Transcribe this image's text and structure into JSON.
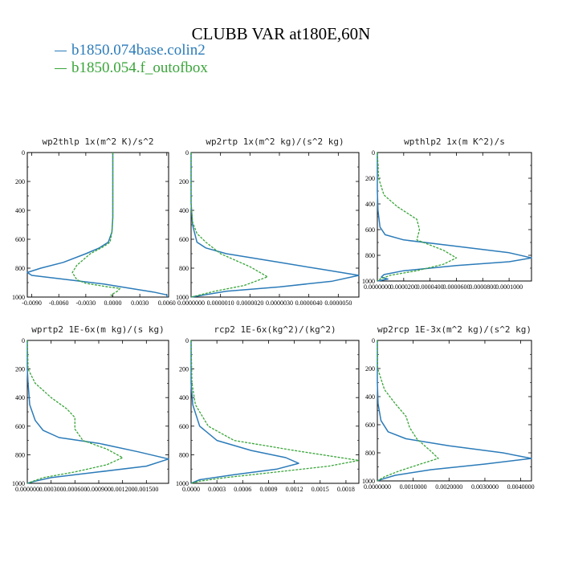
{
  "header": {
    "title": "CLUBB VAR at180E,60N"
  },
  "legend": [
    {
      "label": "b1850.074base.colin2",
      "color": "#2b7bb9"
    },
    {
      "label": "b1850.054.f_outofbox",
      "color": "#3aa53a"
    }
  ],
  "chart_data": [
    {
      "type": "line",
      "title": "wp2thlp   1x(m^2 K)/s^2",
      "xlim": [
        -0.0095,
        0.0062
      ],
      "ylim": [
        0,
        1000
      ],
      "y_inverted": true,
      "x_ticks": [
        -0.009,
        -0.006,
        -0.003,
        0.0,
        0.003,
        0.006
      ],
      "x_tick_labels": [
        "-0.0090",
        "-0.0060",
        "-0.0030",
        "0.0000",
        "0.0030",
        "0.0060"
      ],
      "y_ticks": [
        0,
        200,
        400,
        600,
        800,
        1000
      ],
      "y_tick_labels": [
        "0",
        "200",
        "400",
        "600",
        "800",
        "1000"
      ],
      "series": [
        {
          "values": [
            [
              0,
              0
            ],
            [
              0,
              300
            ],
            [
              0,
              450
            ],
            [
              -0.0001,
              550
            ],
            [
              -0.0005,
              620
            ],
            [
              -0.0015,
              660
            ],
            [
              -0.003,
              700
            ],
            [
              -0.0055,
              760
            ],
            [
              -0.008,
              800
            ],
            [
              -0.0095,
              830
            ],
            [
              -0.009,
              850
            ],
            [
              -0.005,
              880
            ],
            [
              -0.001,
              910
            ],
            [
              0.002,
              940
            ],
            [
              0.0045,
              965
            ],
            [
              0.006,
              985
            ],
            [
              0.006,
              1000
            ]
          ]
        },
        {
          "values": [
            [
              0,
              0
            ],
            [
              0,
              300
            ],
            [
              0,
              450
            ],
            [
              -0.0001,
              550
            ],
            [
              -0.0003,
              620
            ],
            [
              -0.001,
              650
            ],
            [
              -0.0025,
              700
            ],
            [
              -0.004,
              780
            ],
            [
              -0.0045,
              830
            ],
            [
              -0.004,
              880
            ],
            [
              -0.003,
              905
            ],
            [
              -0.0005,
              930
            ],
            [
              0.0008,
              940
            ],
            [
              0.0005,
              960
            ],
            [
              -0.0002,
              985
            ],
            [
              0,
              1000
            ]
          ]
        }
      ]
    },
    {
      "type": "line",
      "title": "wp2rtp   1x(m^2 kg)/(s^2 kg)",
      "xlim": [
        0,
        5.7e-06
      ],
      "ylim": [
        0,
        1000
      ],
      "y_inverted": true,
      "x_ticks": [
        0,
        1e-06,
        2e-06,
        3e-06,
        4e-06,
        5e-06
      ],
      "x_tick_labels": [
        "0.0000000",
        "0.0000010",
        "0.0000020",
        "0.0000030",
        "0.0000040",
        "0.0000050"
      ],
      "y_ticks": [
        0,
        200,
        400,
        600,
        800,
        1000
      ],
      "y_tick_labels": [
        "0",
        "200",
        "400",
        "600",
        "800",
        "1000"
      ],
      "series": [
        {
          "values": [
            [
              0,
              0
            ],
            [
              0,
              350
            ],
            [
              5e-08,
              500
            ],
            [
              2e-07,
              620
            ],
            [
              5e-07,
              660
            ],
            [
              1.2e-06,
              700
            ],
            [
              3e-06,
              760
            ],
            [
              4.5e-06,
              810
            ],
            [
              5.7e-06,
              850
            ],
            [
              4.8e-06,
              890
            ],
            [
              3e-06,
              930
            ],
            [
              1.2e-06,
              960
            ],
            [
              3e-07,
              990
            ],
            [
              0,
              1000
            ]
          ]
        },
        {
          "values": [
            [
              0,
              0
            ],
            [
              0,
              350
            ],
            [
              5e-08,
              480
            ],
            [
              2e-07,
              560
            ],
            [
              5e-07,
              620
            ],
            [
              1e-06,
              700
            ],
            [
              2e-06,
              790
            ],
            [
              2.6e-06,
              860
            ],
            [
              1.8e-06,
              920
            ],
            [
              8e-07,
              960
            ],
            [
              2e-07,
              990
            ],
            [
              0,
              1000
            ]
          ]
        }
      ]
    },
    {
      "type": "line",
      "title": "wpthlp2   1x(m K^2)/s",
      "xlim": [
        0,
        0.000117
      ],
      "ylim": [
        0,
        1000
      ],
      "y_inverted": true,
      "x_ticks": [
        0,
        2e-05,
        4e-05,
        6e-05,
        8e-05,
        0.0001
      ],
      "x_tick_labels": [
        "0.0000000",
        "0.0000200",
        "0.0000400",
        "0.0000600",
        "0.0000800",
        "0.0001000"
      ],
      "y_ticks": [
        0,
        200,
        400,
        600,
        800,
        1000
      ],
      "y_tick_labels": [
        "0",
        "200",
        "400",
        "600",
        "800",
        "1000"
      ],
      "series": [
        {
          "values": [
            [
              0,
              0
            ],
            [
              0,
              300
            ],
            [
              5e-07,
              450
            ],
            [
              2e-06,
              580
            ],
            [
              6e-06,
              640
            ],
            [
              2e-05,
              680
            ],
            [
              6e-05,
              730
            ],
            [
              0.0001,
              780
            ],
            [
              0.000117,
              820
            ],
            [
              0.0001,
              850
            ],
            [
              6e-05,
              880
            ],
            [
              2e-05,
              920
            ],
            [
              5e-06,
              950
            ],
            [
              3e-06,
              970
            ],
            [
              8e-06,
              985
            ],
            [
              0,
              1000
            ]
          ]
        },
        {
          "values": [
            [
              0,
              0
            ],
            [
              1e-06,
              200
            ],
            [
              5e-06,
              330
            ],
            [
              1.5e-05,
              420
            ],
            [
              3e-05,
              520
            ],
            [
              3.2e-05,
              600
            ],
            [
              3e-05,
              680
            ],
            [
              5e-05,
              760
            ],
            [
              6e-05,
              820
            ],
            [
              5e-05,
              870
            ],
            [
              3e-05,
              920
            ],
            [
              1e-05,
              955
            ],
            [
              2e-06,
              985
            ],
            [
              0,
              1000
            ]
          ]
        }
      ]
    },
    {
      "type": "line",
      "title": "wprtp2   1E-6x(m kg)/(s kg)",
      "xlim": [
        0,
        0.00178
      ],
      "ylim": [
        0,
        1000
      ],
      "y_inverted": true,
      "x_ticks": [
        0,
        0.0003,
        0.0006,
        0.0009,
        0.0012,
        0.0015
      ],
      "x_tick_labels": [
        "0.000000",
        "0.000300",
        "0.000600",
        "0.000900",
        "0.001200",
        "0.001500"
      ],
      "y_ticks": [
        0,
        200,
        400,
        600,
        800,
        1000
      ],
      "y_tick_labels": [
        "0",
        "200",
        "400",
        "600",
        "800",
        "1000"
      ],
      "series": [
        {
          "values": [
            [
              0,
              0
            ],
            [
              0,
              200
            ],
            [
              1e-05,
              300
            ],
            [
              3e-05,
              450
            ],
            [
              0.0001,
              560
            ],
            [
              0.0002,
              630
            ],
            [
              0.0004,
              680
            ],
            [
              0.0009,
              720
            ],
            [
              0.0014,
              780
            ],
            [
              0.00178,
              830
            ],
            [
              0.0015,
              880
            ],
            [
              0.0009,
              920
            ],
            [
              0.0003,
              960
            ],
            [
              0.0001,
              985
            ],
            [
              0,
              1000
            ]
          ]
        },
        {
          "values": [
            [
              0,
              0
            ],
            [
              1e-05,
              200
            ],
            [
              0.0001,
              300
            ],
            [
              0.0003,
              400
            ],
            [
              0.0005,
              480
            ],
            [
              0.0006,
              540
            ],
            [
              0.0006,
              620
            ],
            [
              0.0007,
              700
            ],
            [
              0.001,
              760
            ],
            [
              0.0012,
              820
            ],
            [
              0.001,
              870
            ],
            [
              0.0006,
              920
            ],
            [
              0.0002,
              960
            ],
            [
              5e-05,
              990
            ],
            [
              0,
              1000
            ]
          ]
        }
      ]
    },
    {
      "type": "line",
      "title": "rcp2   1E-6x(kg^2)/(kg^2)",
      "xlim": [
        0,
        0.00195
      ],
      "ylim": [
        0,
        1000
      ],
      "y_inverted": true,
      "x_ticks": [
        0,
        0.0003,
        0.0006,
        0.0009,
        0.0012,
        0.0015,
        0.0018
      ],
      "x_tick_labels": [
        "0.0000",
        "0.0003",
        "0.0006",
        "0.0009",
        "0.0012",
        "0.0015",
        "0.0018"
      ],
      "y_ticks": [
        0,
        200,
        400,
        600,
        800,
        1000
      ],
      "y_tick_labels": [
        "0",
        "200",
        "400",
        "600",
        "800",
        "1000"
      ],
      "series": [
        {
          "values": [
            [
              0,
              0
            ],
            [
              0,
              300
            ],
            [
              2e-05,
              450
            ],
            [
              0.0001,
              600
            ],
            [
              0.0003,
              700
            ],
            [
              0.0007,
              770
            ],
            [
              0.0011,
              820
            ],
            [
              0.00125,
              860
            ],
            [
              0.001,
              900
            ],
            [
              0.0005,
              940
            ],
            [
              0.0001,
              975
            ],
            [
              0,
              1000
            ]
          ]
        },
        {
          "values": [
            [
              0,
              0
            ],
            [
              1e-05,
              300
            ],
            [
              5e-05,
              450
            ],
            [
              0.0002,
              600
            ],
            [
              0.0005,
              700
            ],
            [
              0.0012,
              770
            ],
            [
              0.00195,
              840
            ],
            [
              0.0016,
              880
            ],
            [
              0.001,
              920
            ],
            [
              0.0004,
              960
            ],
            [
              0.0001,
              985
            ],
            [
              0,
              1000
            ]
          ]
        }
      ]
    },
    {
      "type": "line",
      "title": "wp2rcp   1E-3x(m^2 kg)/(s^2 kg)",
      "xlim": [
        0,
        0.0043
      ],
      "ylim": [
        0,
        1000
      ],
      "y_inverted": true,
      "x_ticks": [
        0,
        0.001,
        0.002,
        0.003,
        0.004
      ],
      "x_tick_labels": [
        "0.0000000",
        "0.0010000",
        "0.0020000",
        "0.0030000",
        "0.0040000"
      ],
      "y_ticks": [
        0,
        200,
        400,
        600,
        800,
        1000
      ],
      "y_tick_labels": [
        "0",
        "200",
        "400",
        "600",
        "800",
        "1000"
      ],
      "series": [
        {
          "values": [
            [
              0,
              0
            ],
            [
              0,
              300
            ],
            [
              2e-05,
              450
            ],
            [
              0.0001,
              570
            ],
            [
              0.0003,
              650
            ],
            [
              0.0008,
              700
            ],
            [
              0.002,
              750
            ],
            [
              0.0035,
              800
            ],
            [
              0.0043,
              840
            ],
            [
              0.003,
              880
            ],
            [
              0.0015,
              920
            ],
            [
              0.0005,
              960
            ],
            [
              0.0001,
              990
            ],
            [
              0,
              1000
            ]
          ]
        },
        {
          "values": [
            [
              0,
              0
            ],
            [
              1e-05,
              200
            ],
            [
              0.0002,
              350
            ],
            [
              0.0005,
              450
            ],
            [
              0.0008,
              540
            ],
            [
              0.0009,
              620
            ],
            [
              0.0011,
              700
            ],
            [
              0.0015,
              790
            ],
            [
              0.0017,
              840
            ],
            [
              0.0012,
              880
            ],
            [
              0.0006,
              930
            ],
            [
              0.0002,
              970
            ],
            [
              0,
              1000
            ]
          ]
        }
      ]
    }
  ]
}
